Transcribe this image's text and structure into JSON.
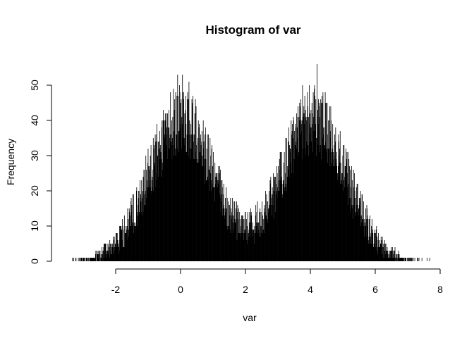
{
  "chart_data": {
    "type": "bar",
    "title": "Histogram of var",
    "xlabel": "var",
    "ylabel": "Frequency",
    "xlim": [
      -3.5,
      7.75
    ],
    "ylim": [
      0,
      56
    ],
    "x_ticks": [
      -2,
      0,
      2,
      4,
      6,
      8
    ],
    "y_ticks": [
      0,
      10,
      20,
      30,
      40,
      50
    ],
    "bin_width": 0.01,
    "bins_range": [
      -3.4,
      7.7
    ],
    "distribution_profile": {
      "description_units": "frequency per 0.01-wide bin",
      "components": [
        {
          "mean": 0.0,
          "sd": 1.0,
          "peak_frequency": 40
        },
        {
          "mean": 4.1,
          "sd": 1.0,
          "peak_frequency": 40
        }
      ]
    },
    "notable_bins": [
      {
        "x": -0.1,
        "frequency": 53
      },
      {
        "x": 0.05,
        "frequency": 53
      },
      {
        "x": 0.25,
        "frequency": 51
      },
      {
        "x": 3.75,
        "frequency": 50
      },
      {
        "x": 4.2,
        "frequency": 56
      },
      {
        "x": 4.45,
        "frequency": 48
      }
    ],
    "grid": false,
    "legend": "none",
    "bar_color": "#000000"
  }
}
